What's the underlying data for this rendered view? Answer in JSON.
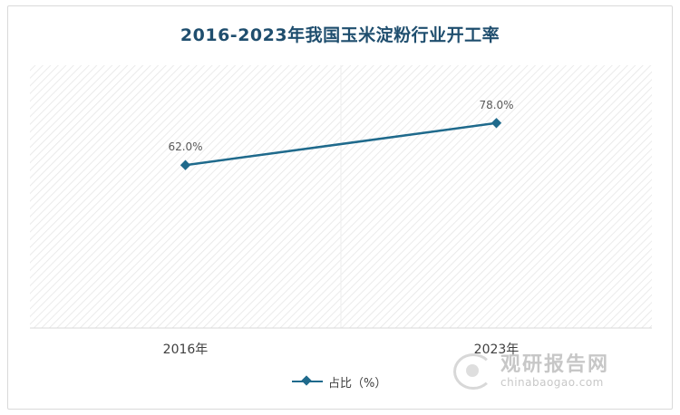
{
  "chart_data": {
    "type": "line",
    "title": "2016-2023年我国玉米淀粉行业开工率",
    "categories": [
      "2016年",
      "2023年"
    ],
    "series": [
      {
        "name": "占比（%）",
        "values": [
          62.0,
          78.0
        ],
        "labels": [
          "62.0%",
          "78.0%"
        ],
        "color": "#1f6a8c"
      }
    ],
    "ylim": [
      0,
      100
    ],
    "grid": false,
    "legend": "bottom"
  },
  "watermark": {
    "cn": "观研报告网",
    "en": "chinabaogao.com"
  }
}
